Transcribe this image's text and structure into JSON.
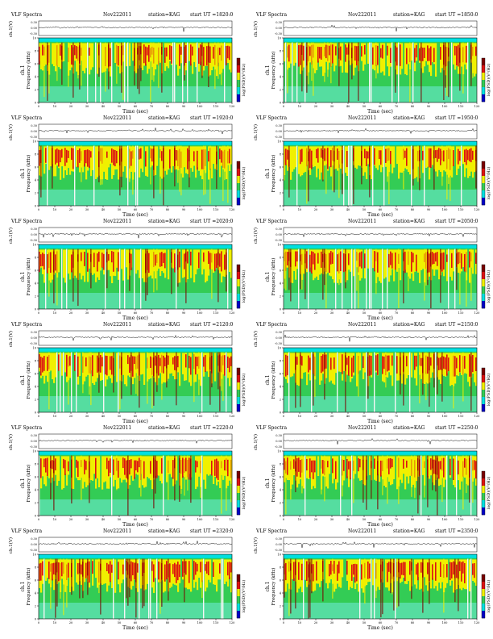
{
  "figure": {
    "common": {
      "title": "VLF Spectra",
      "date": "Nov222011",
      "station": "station=KAG",
      "start_prefix": "start  UT  =",
      "ylabel_signal_top": "ch.1(V)",
      "ylabel_signal_ticks": [
        "0.30",
        "0.00",
        "-0.30"
      ],
      "ylabel_spec_ch": "ch.1",
      "ylabel_spec": "Frequency (kHz)",
      "xlabel": "Time (sec)",
      "colorbar_label": "log(PSD)(V²/Hz)"
    }
  },
  "chart_data": [
    {
      "type": "heatmap",
      "start_ut": "1820:0",
      "x_ticks": [
        0,
        10,
        20,
        30,
        40,
        50,
        60,
        70,
        80,
        90,
        100,
        110,
        120
      ],
      "y_ticks": [
        0,
        2,
        4,
        6,
        8,
        10
      ],
      "xlim": [
        0,
        120
      ],
      "ylim": [
        0,
        10
      ],
      "signal_ylim": [
        -0.3,
        0.3
      ]
    },
    {
      "type": "heatmap",
      "start_ut": "1850:0",
      "x_ticks": [
        0,
        10,
        20,
        30,
        40,
        50,
        60,
        70,
        80,
        90,
        100,
        110,
        120
      ],
      "y_ticks": [
        0,
        2,
        4,
        6,
        8,
        10
      ],
      "xlim": [
        0,
        120
      ],
      "ylim": [
        0,
        10
      ],
      "signal_ylim": [
        -0.3,
        0.3
      ]
    },
    {
      "type": "heatmap",
      "start_ut": "1920:0",
      "x_ticks": [
        0,
        10,
        20,
        30,
        40,
        50,
        60,
        70,
        80,
        90,
        100,
        110,
        120
      ],
      "y_ticks": [
        0,
        2,
        4,
        6,
        8,
        10
      ],
      "xlim": [
        0,
        120
      ],
      "ylim": [
        0,
        10
      ],
      "signal_ylim": [
        -0.3,
        0.3
      ]
    },
    {
      "type": "heatmap",
      "start_ut": "1950:0",
      "x_ticks": [
        0,
        10,
        20,
        30,
        40,
        50,
        60,
        70,
        80,
        90,
        100,
        110,
        120
      ],
      "y_ticks": [
        0,
        2,
        4,
        6,
        8,
        10
      ],
      "xlim": [
        0,
        120
      ],
      "ylim": [
        0,
        10
      ],
      "signal_ylim": [
        -0.3,
        0.3
      ]
    },
    {
      "type": "heatmap",
      "start_ut": "2020:0",
      "x_ticks": [
        0,
        10,
        20,
        30,
        40,
        50,
        60,
        70,
        80,
        90,
        100,
        110,
        120
      ],
      "y_ticks": [
        0,
        2,
        4,
        6,
        8,
        10
      ],
      "xlim": [
        0,
        120
      ],
      "ylim": [
        0,
        10
      ],
      "signal_ylim": [
        -0.3,
        0.3
      ]
    },
    {
      "type": "heatmap",
      "start_ut": "2050:0",
      "x_ticks": [
        0,
        10,
        20,
        30,
        40,
        50,
        60,
        70,
        80,
        90,
        100,
        110,
        120
      ],
      "y_ticks": [
        0,
        2,
        4,
        6,
        8,
        10
      ],
      "xlim": [
        0,
        120
      ],
      "ylim": [
        0,
        10
      ],
      "signal_ylim": [
        -0.3,
        0.3
      ]
    },
    {
      "type": "heatmap",
      "start_ut": "2120:0",
      "x_ticks": [
        0,
        10,
        20,
        30,
        40,
        50,
        60,
        70,
        80,
        90,
        100,
        110,
        120
      ],
      "y_ticks": [
        0,
        2,
        4,
        6,
        8,
        10
      ],
      "xlim": [
        0,
        120
      ],
      "ylim": [
        0,
        10
      ],
      "signal_ylim": [
        -0.3,
        0.3
      ]
    },
    {
      "type": "heatmap",
      "start_ut": "2150:0",
      "x_ticks": [
        0,
        10,
        20,
        30,
        40,
        50,
        60,
        70,
        80,
        90,
        100,
        110,
        120
      ],
      "y_ticks": [
        0,
        2,
        4,
        6,
        8,
        10
      ],
      "xlim": [
        0,
        120
      ],
      "ylim": [
        0,
        10
      ],
      "signal_ylim": [
        -0.3,
        0.3
      ]
    },
    {
      "type": "heatmap",
      "start_ut": "2220:0",
      "x_ticks": [
        0,
        10,
        20,
        30,
        40,
        50,
        60,
        70,
        80,
        90,
        100,
        110,
        120
      ],
      "y_ticks": [
        0,
        2,
        4,
        6,
        8,
        10
      ],
      "xlim": [
        0,
        120
      ],
      "ylim": [
        0,
        10
      ],
      "signal_ylim": [
        -0.3,
        0.3
      ]
    },
    {
      "type": "heatmap",
      "start_ut": "2250:0",
      "x_ticks": [
        0,
        10,
        20,
        30,
        40,
        50,
        60,
        70,
        80,
        90,
        100,
        110,
        120
      ],
      "y_ticks": [
        0,
        2,
        4,
        6,
        8,
        10
      ],
      "xlim": [
        0,
        120
      ],
      "ylim": [
        0,
        10
      ],
      "signal_ylim": [
        -0.3,
        0.3
      ]
    },
    {
      "type": "heatmap",
      "start_ut": "2320:0",
      "x_ticks": [
        0,
        10,
        20,
        30,
        40,
        50,
        60,
        70,
        80,
        90,
        100,
        110,
        120
      ],
      "y_ticks": [
        0,
        2,
        4,
        6,
        8,
        10
      ],
      "xlim": [
        0,
        120
      ],
      "ylim": [
        0,
        10
      ],
      "signal_ylim": [
        -0.3,
        0.3
      ]
    },
    {
      "type": "heatmap",
      "start_ut": "2350:0",
      "x_ticks": [
        0,
        10,
        20,
        30,
        40,
        50,
        60,
        70,
        80,
        90,
        100,
        110,
        120
      ],
      "y_ticks": [
        0,
        2,
        4,
        6,
        8,
        10
      ],
      "xlim": [
        0,
        120
      ],
      "ylim": [
        0,
        10
      ],
      "signal_ylim": [
        -0.3,
        0.3
      ]
    }
  ],
  "colors": {
    "low": "#0000c8",
    "cyan": "#00e0e0",
    "green": "#33cc55",
    "yellow": "#f0f000",
    "red": "#dd1111",
    "dark": "#7a0000"
  }
}
